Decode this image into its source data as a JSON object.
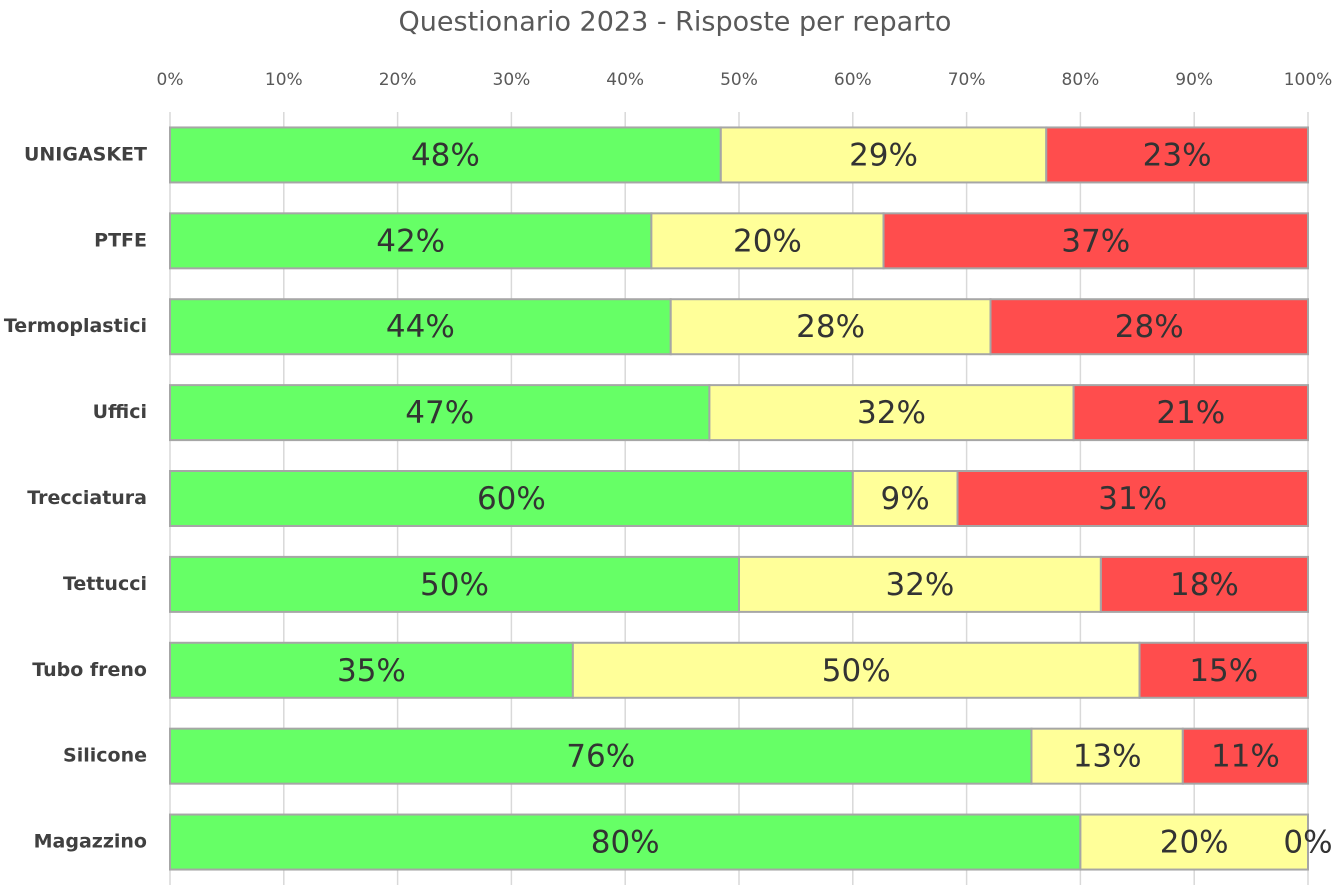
{
  "chart_data": {
    "type": "stacked-barh",
    "title": "Questionario 2023 - Risposte per reparto",
    "categories": [
      "UNIGASKET",
      "PTFE",
      "Termoplastici",
      "Uffici",
      "Trecciatura",
      "Tettucci",
      "Tubo freno",
      "Silicone",
      "Magazzino"
    ],
    "series": [
      {
        "color": "#66ff66",
        "values": [
          48.4,
          42.3,
          44.0,
          47.4,
          60.0,
          50.0,
          35.4,
          75.7,
          80.0
        ],
        "value_labels": [
          "48%",
          "42%",
          "44%",
          "47%",
          "60%",
          "50%",
          "35%",
          "76%",
          "80%"
        ]
      },
      {
        "color": "#ffff99",
        "values": [
          28.6,
          20.4,
          28.1,
          32.0,
          9.2,
          31.8,
          49.8,
          13.3,
          20.0
        ],
        "value_labels": [
          "29%",
          "20%",
          "28%",
          "32%",
          "9%",
          "32%",
          "50%",
          "13%",
          "20%"
        ]
      },
      {
        "color": "#ff4d4d",
        "values": [
          23.0,
          37.3,
          27.9,
          20.6,
          30.8,
          18.2,
          14.8,
          11.0,
          0
        ],
        "value_labels": [
          "23%",
          "37%",
          "28%",
          "21%",
          "31%",
          "18%",
          "15%",
          "11%",
          "0%"
        ]
      }
    ],
    "xlim": [
      0,
      100
    ],
    "xticks": [
      {
        "value": 0,
        "label": "0%"
      },
      {
        "value": 10,
        "label": "10%"
      },
      {
        "value": 20,
        "label": "20%"
      },
      {
        "value": 30,
        "label": "30%"
      },
      {
        "value": 40,
        "label": "40%"
      },
      {
        "value": 50,
        "label": "50%"
      },
      {
        "value": 60,
        "label": "60%"
      },
      {
        "value": 70,
        "label": "70%"
      },
      {
        "value": 80,
        "label": "80%"
      },
      {
        "value": 90,
        "label": "90%"
      },
      {
        "value": 100,
        "label": "100%"
      }
    ],
    "grid": true
  }
}
